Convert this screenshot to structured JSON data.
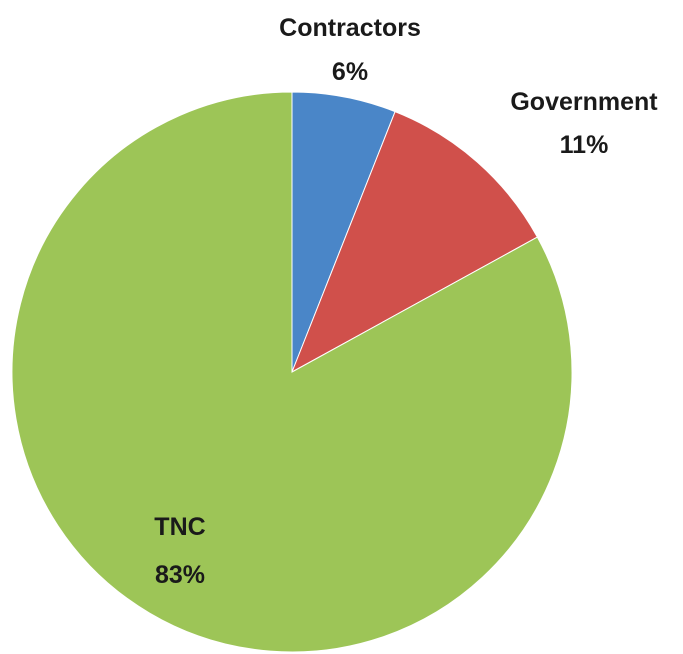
{
  "chart_data": {
    "type": "pie",
    "slices": [
      {
        "label": "Contractors",
        "value": 6,
        "value_label": "6%",
        "color": "#4a86c8"
      },
      {
        "label": "Government",
        "value": 11,
        "value_label": "11%",
        "color": "#d0504b"
      },
      {
        "label": "TNC",
        "value": 83,
        "value_label": "83%",
        "color": "#9dc557"
      }
    ],
    "start": "12 o'clock",
    "direction": "clockwise",
    "legend": "none"
  }
}
